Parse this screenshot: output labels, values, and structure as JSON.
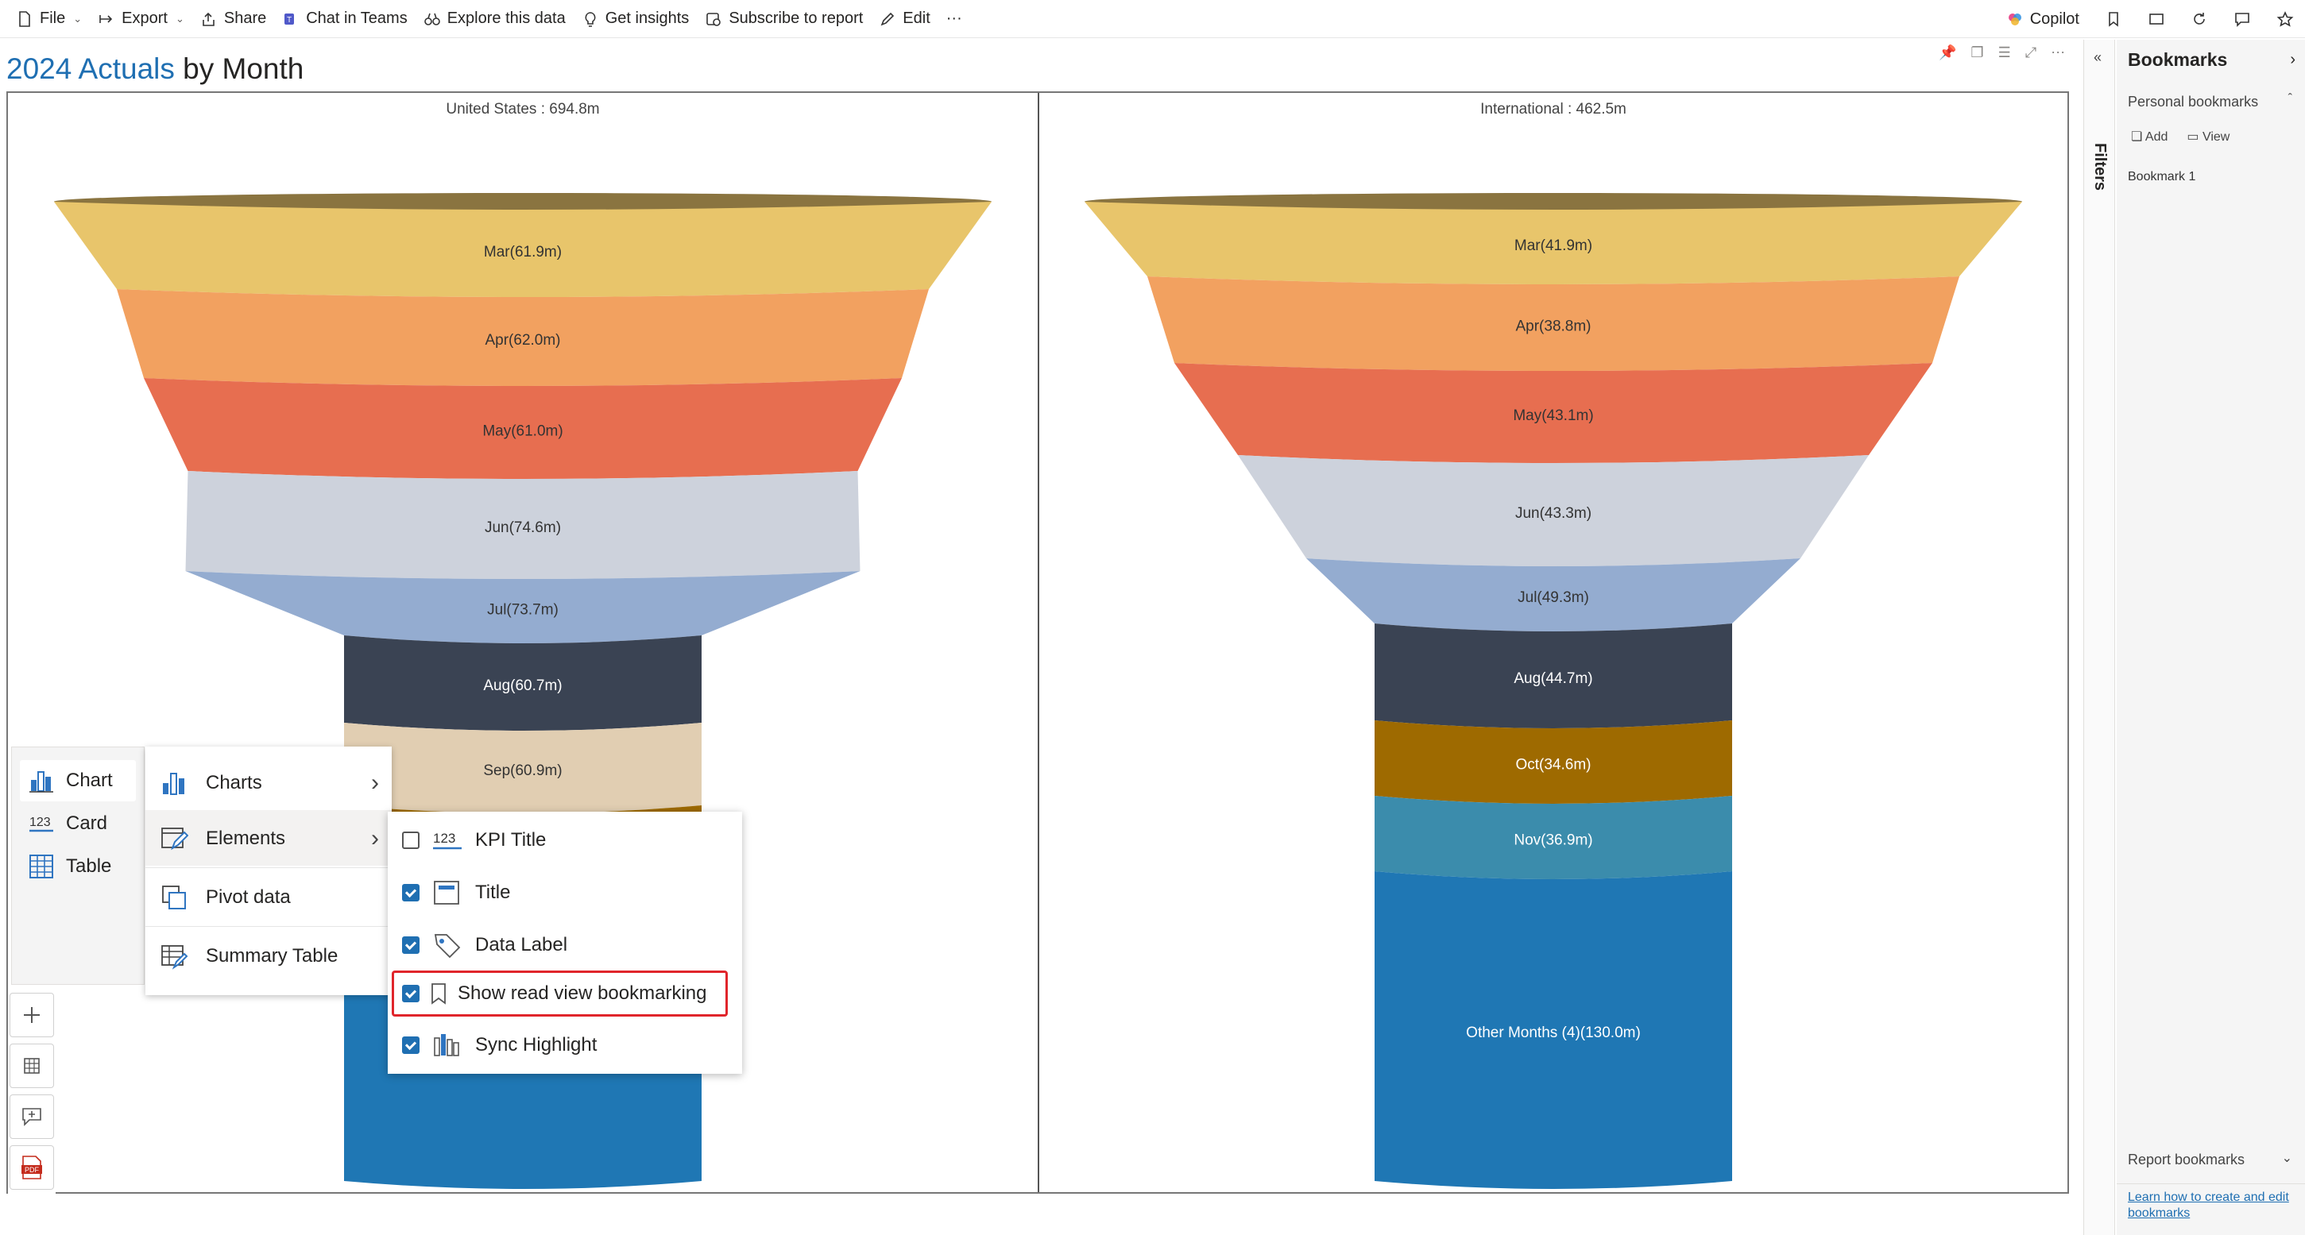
{
  "toolbar": {
    "items": [
      "File",
      "Export",
      "Share",
      "Chat in Teams",
      "Explore this data",
      "Get insights",
      "Subscribe to report",
      "Edit",
      "···"
    ],
    "copilot": "Copilot"
  },
  "report": {
    "title_accent": "2024 Actuals",
    "title_rest": " by Month"
  },
  "chart_data": {
    "type": "funnel",
    "panels": [
      {
        "header": "United States :  694.8m",
        "segments": [
          {
            "label": "Mar(61.9m)",
            "month": "Mar",
            "value": 61.9,
            "color": "#e8c56b"
          },
          {
            "label": "Apr(62.0m)",
            "month": "Apr",
            "value": 62.0,
            "color": "#f2a160"
          },
          {
            "label": "May(61.0m)",
            "month": "May",
            "value": 61.0,
            "color": "#e76e50"
          },
          {
            "label": "Jun(74.6m)",
            "month": "Jun",
            "value": 74.6,
            "color": "#cdd2dc"
          },
          {
            "label": "Jul(73.7m)",
            "month": "Jul",
            "value": 73.7,
            "color": "#94acd0"
          },
          {
            "label": "Aug(60.7m)",
            "month": "Aug",
            "value": 60.7,
            "color": "#3a4353"
          },
          {
            "label": "Sep(60.9m)",
            "month": "Sep",
            "value": 60.9,
            "color": "#e1ceb2"
          },
          {
            "label": "",
            "month": "",
            "value": null,
            "color": "#9e6a00"
          },
          {
            "label": "",
            "month": "",
            "value": null,
            "color": "#1f77b4"
          }
        ]
      },
      {
        "header": "International :  462.5m",
        "segments": [
          {
            "label": "Mar(41.9m)",
            "month": "Mar",
            "value": 41.9,
            "color": "#e8c56b"
          },
          {
            "label": "Apr(38.8m)",
            "month": "Apr",
            "value": 38.8,
            "color": "#f2a160"
          },
          {
            "label": "May(43.1m)",
            "month": "May",
            "value": 43.1,
            "color": "#e76e50"
          },
          {
            "label": "Jun(43.3m)",
            "month": "Jun",
            "value": 43.3,
            "color": "#cdd2dc"
          },
          {
            "label": "Jul(49.3m)",
            "month": "Jul",
            "value": 49.3,
            "color": "#94acd0"
          },
          {
            "label": "Aug(44.7m)",
            "month": "Aug",
            "value": 44.7,
            "color": "#3a4353"
          },
          {
            "label": "Oct(34.6m)",
            "month": "Oct",
            "value": 34.6,
            "color": "#9e6a00"
          },
          {
            "label": "Nov(36.9m)",
            "month": "Nov",
            "value": 36.9,
            "color": "#3b8cac"
          },
          {
            "label": "Other Months (4)(130.0m)",
            "month": "Other Months (4)",
            "value": 130.0,
            "color": "#1f77b4"
          }
        ]
      }
    ]
  },
  "menu_a": {
    "items": [
      "Chart",
      "Card",
      "Table"
    ],
    "selected": "Chart"
  },
  "menu_b": {
    "items": [
      "Charts",
      "Elements",
      "Pivot data",
      "Summary Table"
    ],
    "highlighted": "Elements"
  },
  "menu_c": {
    "items": [
      {
        "label": "KPI Title",
        "checked": false
      },
      {
        "label": "Title",
        "checked": true
      },
      {
        "label": "Data Label",
        "checked": true
      },
      {
        "label": "Show read view bookmarking",
        "checked": true
      },
      {
        "label": "Sync Highlight",
        "checked": true
      }
    ]
  },
  "filters": {
    "label": "Filters"
  },
  "bookmarks": {
    "title": "Bookmarks",
    "personal": "Personal bookmarks",
    "add": "Add",
    "view": "View",
    "items": [
      "Bookmark 1"
    ],
    "report": "Report bookmarks",
    "help_link": "Learn how to create and edit bookmarks"
  }
}
